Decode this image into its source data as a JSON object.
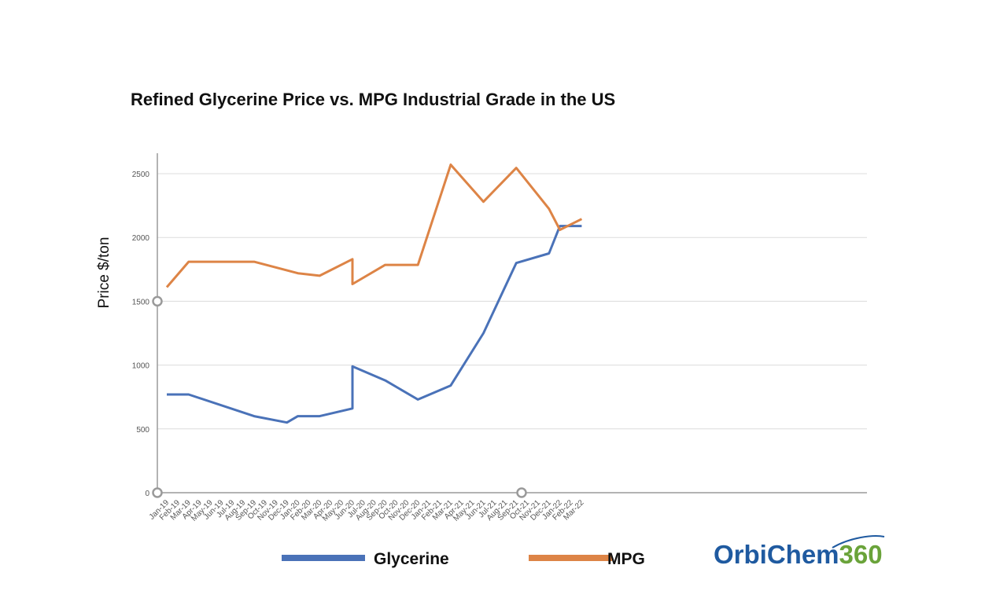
{
  "logo": {
    "brand": "OrbiChem",
    "number": "360"
  },
  "chart_data": {
    "type": "line",
    "title": "Refined Glycerine Price vs. MPG Industrial Grade in the US",
    "xlabel": "",
    "ylabel": "Price $/ton",
    "ylim": [
      0,
      2650
    ],
    "yticks": [
      0,
      500,
      1000,
      1500,
      2000,
      2500
    ],
    "grid": true,
    "legend_position": "bottom",
    "categories": [
      "Jan-19",
      "Feb-19",
      "Mar-19",
      "Apr-19",
      "May-19",
      "Jun-19",
      "Jul-19",
      "Aug-19",
      "Sep-19",
      "Oct-19",
      "Nov-19",
      "Dec-19",
      "Jan-20",
      "Feb-20",
      "Mar-20",
      "Apr-20",
      "May-20",
      "Jun-20",
      "Jul-20",
      "Aug-20",
      "Sep-20",
      "Oct-20",
      "Nov-20",
      "Dec-20",
      "Jan-21",
      "Feb-21",
      "Mar-21",
      "Apr-21",
      "May-21",
      "Jun-21",
      "Jul-21",
      "Aug-21",
      "Sep-21",
      "Oct-21",
      "Nov-21",
      "Dec-21",
      "Jan-22",
      "Feb-22",
      "Mar-22"
    ],
    "series": [
      {
        "name": "Glycerine",
        "color": "#4a72b8",
        "points": [
          {
            "x": "Jan-19",
            "y": 770
          },
          {
            "x": "Mar-19",
            "y": 770
          },
          {
            "x": "Sep-19",
            "y": 600
          },
          {
            "x": "Dec-19",
            "y": 550
          },
          {
            "x": "Jan-20",
            "y": 600
          },
          {
            "x": "Mar-20",
            "y": 600
          },
          {
            "x": "Jun-20",
            "y": 660
          },
          {
            "x": "Jun-20",
            "y": 990
          },
          {
            "x": "Sep-20",
            "y": 880
          },
          {
            "x": "Dec-20",
            "y": 730
          },
          {
            "x": "Mar-21",
            "y": 840
          },
          {
            "x": "Jun-21",
            "y": 1250
          },
          {
            "x": "Sep-21",
            "y": 1800
          },
          {
            "x": "Dec-21",
            "y": 1875
          },
          {
            "x": "Jan-22",
            "y": 2090
          },
          {
            "x": "Mar-22",
            "y": 2090
          }
        ]
      },
      {
        "name": "MPG",
        "color": "#dd8446",
        "points": [
          {
            "x": "Jan-19",
            "y": 1610
          },
          {
            "x": "Mar-19",
            "y": 1810
          },
          {
            "x": "Sep-19",
            "y": 1810
          },
          {
            "x": "Jan-20",
            "y": 1720
          },
          {
            "x": "Mar-20",
            "y": 1700
          },
          {
            "x": "Jun-20",
            "y": 1830
          },
          {
            "x": "Jun-20",
            "y": 1635
          },
          {
            "x": "Sep-20",
            "y": 1785
          },
          {
            "x": "Dec-20",
            "y": 1785
          },
          {
            "x": "Mar-21",
            "y": 2570
          },
          {
            "x": "Jun-21",
            "y": 2280
          },
          {
            "x": "Sep-21",
            "y": 2545
          },
          {
            "x": "Dec-21",
            "y": 2225
          },
          {
            "x": "Jan-22",
            "y": 2060
          },
          {
            "x": "Mar-22",
            "y": 2145
          }
        ]
      }
    ]
  }
}
